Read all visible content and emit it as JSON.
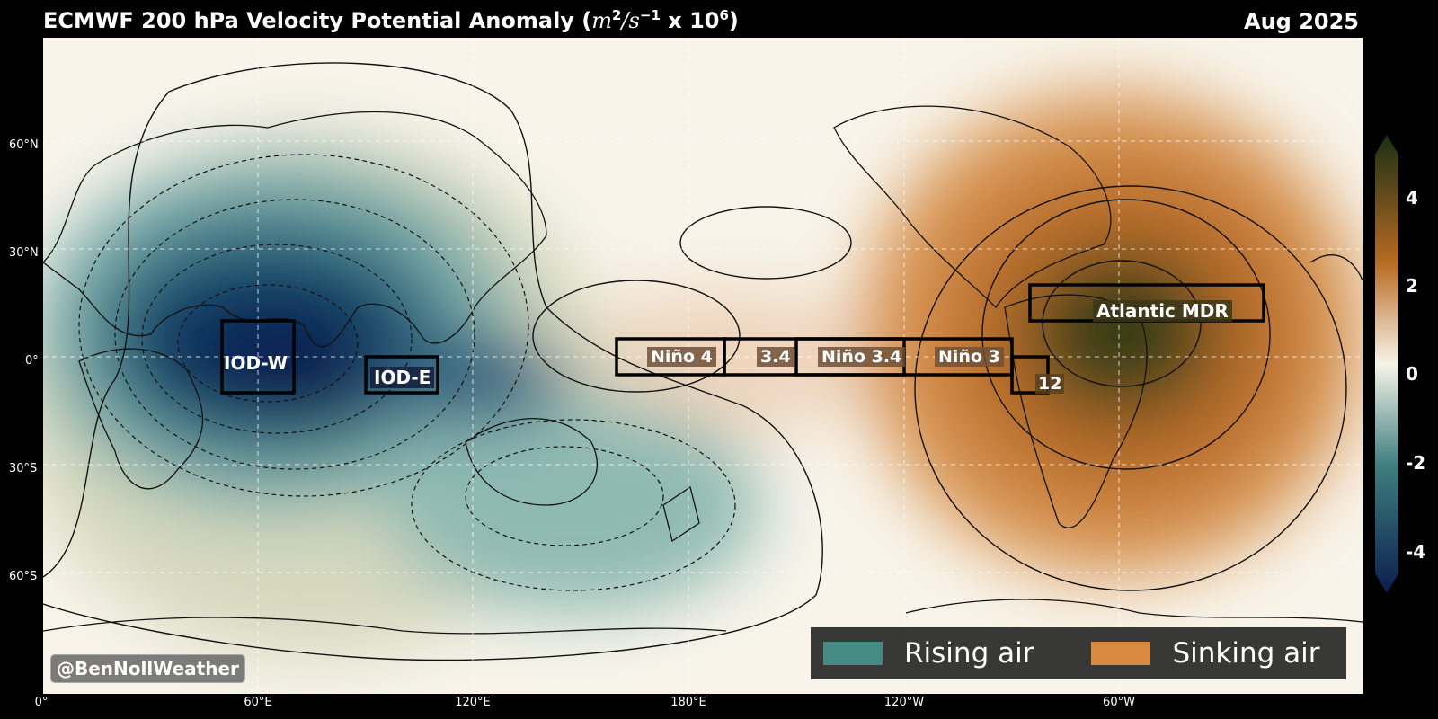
{
  "header": {
    "title_prefix": "ECMWF 200 hPa Velocity Potential Anomaly (",
    "title_unit_a": "m",
    "title_unit_a_exp": "2",
    "title_unit_mid": "/s",
    "title_unit_b_exp": "−1",
    "title_unit_x": " x 10",
    "title_unit_c_exp": "6",
    "title_suffix": ")",
    "date": "Aug 2025"
  },
  "axes": {
    "lat_labels": [
      "60°N",
      "30°N",
      "0°",
      "30°S",
      "60°S"
    ],
    "lon_labels": [
      "0°",
      "60°E",
      "120°E",
      "180°E",
      "120°W",
      "60°W"
    ]
  },
  "colorbar": {
    "ticks": [
      "4",
      "2",
      "0",
      "-2",
      "-4"
    ],
    "colors": [
      "#1a2f14",
      "#b86b24",
      "#f7f3e8",
      "#3f7f80",
      "#0b1e4d"
    ]
  },
  "regions": [
    "IOD-W",
    "IOD-E",
    "Niño 4",
    "3.4",
    "Niño 3.4",
    "Niño 3",
    "12",
    "Atlantic MDR"
  ],
  "legend": {
    "rising_label": "Rising air",
    "rising_color": "#458a83",
    "sinking_label": "Sinking air",
    "sinking_color": "#d98a41"
  },
  "credit": "@BenNollWeather"
}
